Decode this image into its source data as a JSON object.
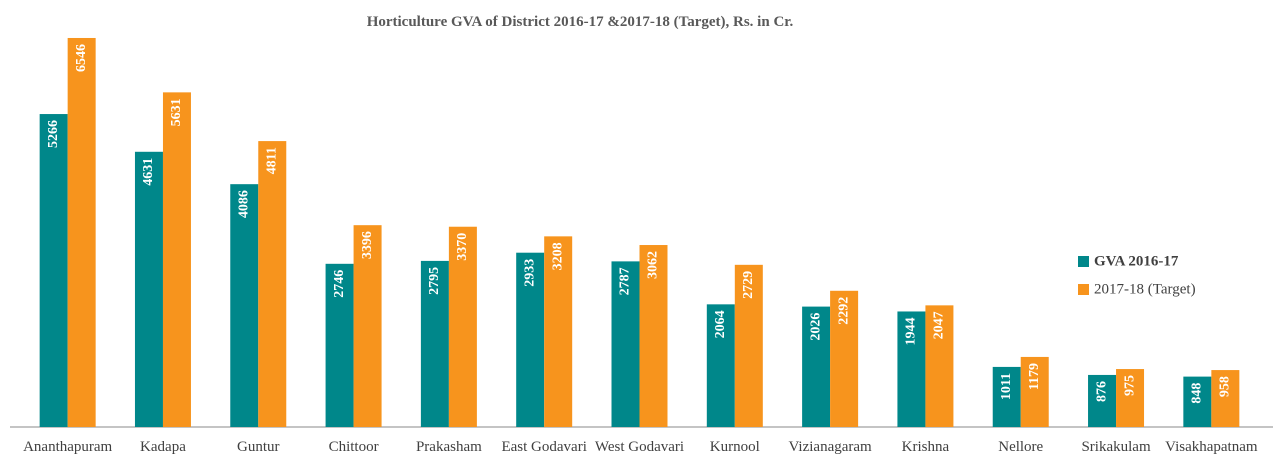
{
  "chart_data": {
    "type": "bar",
    "title": "Horticulture GVA of District 2016-17 &2017-18 (Target), Rs. in Cr.",
    "categories": [
      "Ananthapuram",
      "Kadapa",
      "Guntur",
      "Chittoor",
      "Prakasham",
      "East Godavari",
      "West Godavari",
      "Kurnool",
      "Vizianagaram",
      "Krishna",
      "Nellore",
      "Srikakulam",
      "Visakhapatnam"
    ],
    "series": [
      {
        "name": "GVA 2016-17",
        "color": "#00878a",
        "values": [
          5266,
          4631,
          4086,
          2746,
          2795,
          2933,
          2787,
          2064,
          2026,
          1944,
          1011,
          876,
          848
        ]
      },
      {
        "name": "2017-18 (Target)",
        "color": "#f7941d",
        "values": [
          6546,
          5631,
          4811,
          3396,
          3370,
          3208,
          3062,
          2729,
          2292,
          2047,
          1179,
          975,
          958
        ]
      }
    ],
    "ylim": [
      0,
      7000
    ],
    "legend": "right"
  }
}
